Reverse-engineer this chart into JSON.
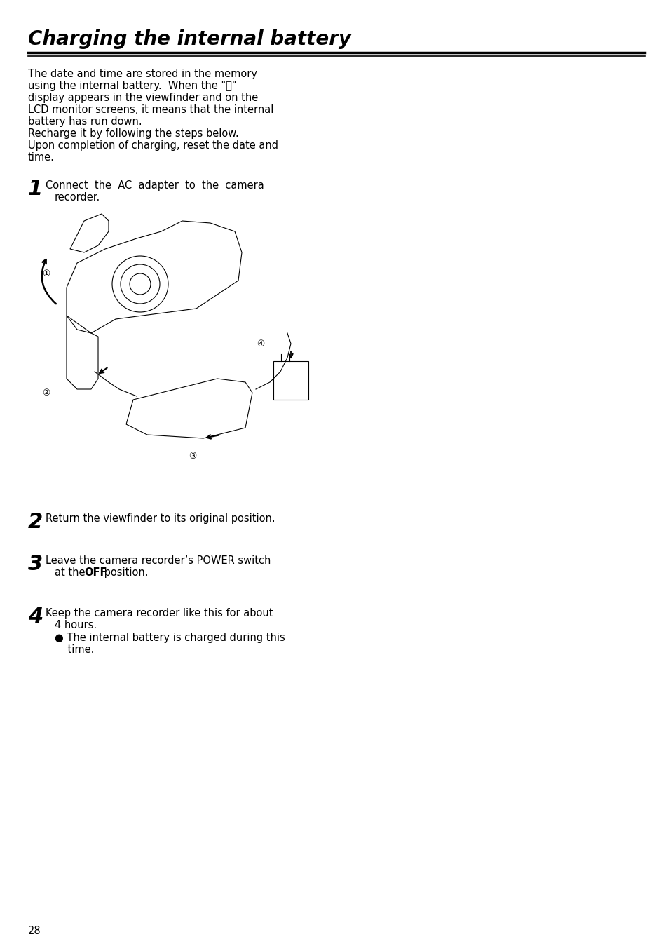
{
  "title": "Charging the internal battery",
  "bg_color": "#ffffff",
  "text_color": "#000000",
  "page_number": "28",
  "body_text": [
    "The date and time are stored in the memory",
    "using the internal battery.  When the \"ⓢ\"",
    "display appears in the viewfinder and on the",
    "LCD monitor screens, it means that the internal",
    "battery has run down.",
    "Recharge it by following the steps below.",
    "Upon completion of charging, reset the date and",
    "time."
  ],
  "step1_num": "1",
  "step1_text_line1": "Connect  the  AC  adapter  to  the  camera",
  "step1_text_line2": "recorder.",
  "step2_num": "2",
  "step2_text": "Return the viewfinder to its original position.",
  "step3_num": "3",
  "step3_text_line1": "Leave the camera recorder’s POWER switch",
  "step3_text_line2": "at the ",
  "step3_bold": "OFF",
  "step3_text_line3": " position.",
  "step4_num": "4",
  "step4_text_line1": "Keep the camera recorder like this for about",
  "step4_text_line2": "4 hours.",
  "step4_bullet": "● The internal battery is charged during this",
  "step4_bullet2": "    time.",
  "font_size_body": 10.5,
  "font_size_title": 20,
  "font_size_step_num": 22,
  "font_size_step_text": 10.5,
  "circle_labels": [
    [
      "①",
      66,
      390
    ],
    [
      "②",
      66,
      560
    ],
    [
      "③",
      275,
      650
    ],
    [
      "④",
      372,
      490
    ]
  ]
}
